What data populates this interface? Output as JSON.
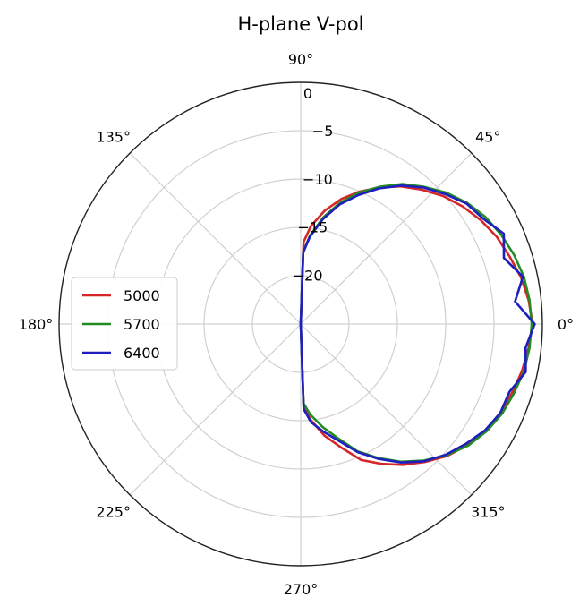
{
  "chart_data": {
    "type": "polar-line",
    "title": "H-plane V-pol",
    "r_range": [
      -25,
      0
    ],
    "radial_ticks": [
      0,
      -5,
      -10,
      -15,
      -20
    ],
    "radial_tick_labels": [
      "0",
      "−5",
      "−10",
      "−15",
      "−20"
    ],
    "angle_tick_labels": [
      "0°",
      "45°",
      "90°",
      "135°",
      "180°",
      "225°",
      "270°",
      "315°"
    ],
    "angle_ticks_deg": [
      0,
      45,
      90,
      135,
      180,
      225,
      270,
      315
    ],
    "grid": true,
    "legend_position": "center-left",
    "series": [
      {
        "name": "5000",
        "color": "#d62728",
        "points": [
          [
            -90,
            -25.0
          ],
          [
            -88,
            -16.5
          ],
          [
            -84,
            -15.0
          ],
          [
            -78,
            -13.2
          ],
          [
            -72,
            -11.6
          ],
          [
            -66,
            -9.6
          ],
          [
            -60,
            -8.3
          ],
          [
            -54,
            -7.0
          ],
          [
            -48,
            -5.8
          ],
          [
            -42,
            -4.6
          ],
          [
            -36,
            -3.7
          ],
          [
            -30,
            -2.9
          ],
          [
            -24,
            -2.4
          ],
          [
            -18,
            -2.0
          ],
          [
            -12,
            -1.6
          ],
          [
            -6,
            -1.3
          ],
          [
            0,
            -1.0
          ],
          [
            6,
            -1.3
          ],
          [
            12,
            -1.7
          ],
          [
            18,
            -2.3
          ],
          [
            24,
            -2.8
          ],
          [
            30,
            -3.5
          ],
          [
            36,
            -4.3
          ],
          [
            42,
            -5.2
          ],
          [
            48,
            -6.3
          ],
          [
            54,
            -7.4
          ],
          [
            60,
            -8.7
          ],
          [
            66,
            -10.0
          ],
          [
            72,
            -11.4
          ],
          [
            78,
            -13.0
          ],
          [
            84,
            -14.8
          ],
          [
            88,
            -16.5
          ],
          [
            90,
            -25.0
          ]
        ]
      },
      {
        "name": "5700",
        "color": "#228b22",
        "points": [
          [
            -90,
            -25.0
          ],
          [
            -88,
            -16.8
          ],
          [
            -84,
            -15.6
          ],
          [
            -78,
            -14.1
          ],
          [
            -72,
            -12.6
          ],
          [
            -66,
            -10.6
          ],
          [
            -60,
            -9.0
          ],
          [
            -54,
            -7.4
          ],
          [
            -48,
            -6.0
          ],
          [
            -42,
            -4.7
          ],
          [
            -36,
            -3.6
          ],
          [
            -30,
            -2.8
          ],
          [
            -24,
            -2.2
          ],
          [
            -18,
            -1.8
          ],
          [
            -12,
            -1.4
          ],
          [
            -6,
            -1.2
          ],
          [
            0,
            -1.1
          ],
          [
            6,
            -1.2
          ],
          [
            12,
            -1.4
          ],
          [
            18,
            -1.8
          ],
          [
            24,
            -2.3
          ],
          [
            30,
            -2.9
          ],
          [
            36,
            -3.7
          ],
          [
            42,
            -4.7
          ],
          [
            48,
            -5.9
          ],
          [
            54,
            -7.1
          ],
          [
            60,
            -8.6
          ],
          [
            66,
            -10.1
          ],
          [
            72,
            -11.8
          ],
          [
            78,
            -13.7
          ],
          [
            84,
            -15.8
          ],
          [
            88,
            -17.5
          ],
          [
            90,
            -25.0
          ]
        ]
      },
      {
        "name": "6400",
        "color": "#1f1fbf",
        "points": [
          [
            -90,
            -25.0
          ],
          [
            -88,
            -16.2
          ],
          [
            -84,
            -14.8
          ],
          [
            -78,
            -13.6
          ],
          [
            -72,
            -12.3
          ],
          [
            -66,
            -10.5
          ],
          [
            -60,
            -8.9
          ],
          [
            -54,
            -7.3
          ],
          [
            -48,
            -5.9
          ],
          [
            -42,
            -4.8
          ],
          [
            -36,
            -3.9
          ],
          [
            -30,
            -3.0
          ],
          [
            -24,
            -2.4
          ],
          [
            -18,
            -2.3
          ],
          [
            -12,
            -1.2
          ],
          [
            -6,
            -1.6
          ],
          [
            0,
            -0.8
          ],
          [
            6,
            -2.7
          ],
          [
            12,
            -1.5
          ],
          [
            18,
            -2.9
          ],
          [
            24,
            -2.0
          ],
          [
            30,
            -3.2
          ],
          [
            36,
            -3.8
          ],
          [
            42,
            -4.9
          ],
          [
            48,
            -6.0
          ],
          [
            54,
            -7.3
          ],
          [
            60,
            -8.8
          ],
          [
            66,
            -10.4
          ],
          [
            72,
            -12.0
          ],
          [
            78,
            -13.9
          ],
          [
            84,
            -15.9
          ],
          [
            88,
            -17.6
          ],
          [
            90,
            -25.0
          ]
        ]
      }
    ]
  }
}
